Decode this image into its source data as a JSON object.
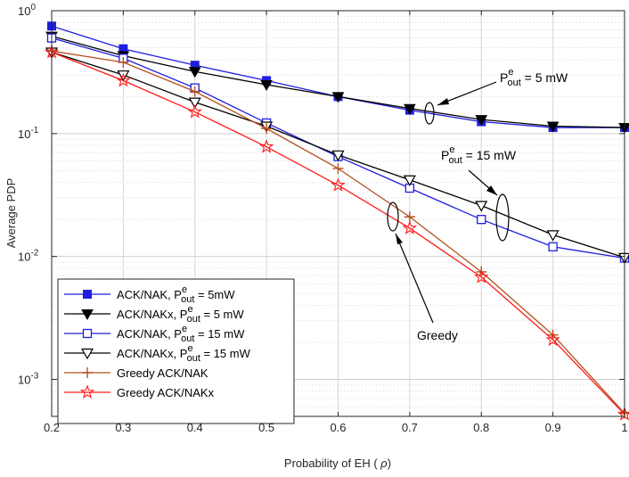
{
  "chart_data": {
    "type": "line",
    "yscale": "log",
    "xlabel": "Probability of EH (ρ)",
    "ylabel": "Average PDP",
    "xlim": [
      0.2,
      1.0
    ],
    "ylim": [
      0.0005,
      1
    ],
    "grid": true,
    "x": [
      0.2,
      0.3,
      0.4,
      0.5,
      0.6,
      0.7,
      0.8,
      0.9,
      1.0
    ],
    "x_tick_labels": [
      "0.2",
      "0.3",
      "0.4",
      "0.5",
      "0.6",
      "0.7",
      "0.8",
      "0.9",
      "1"
    ],
    "y_ticks": [
      {
        "value": 1,
        "base": "10",
        "exp": "0"
      },
      {
        "value": 0.1,
        "base": "10",
        "exp": "-1"
      },
      {
        "value": 0.01,
        "base": "10",
        "exp": "-2"
      },
      {
        "value": 0.001,
        "base": "10",
        "exp": "-3"
      }
    ],
    "legend_position": "bottom-left",
    "series": [
      {
        "name": "ACK/NAK, P^e_out = 5mW",
        "label_parts": [
          "ACK/NAK, P",
          "e",
          "out",
          " = 5mW"
        ],
        "color": "#1f1fe0",
        "marker": "square-filled",
        "values": [
          0.75,
          0.49,
          0.36,
          0.27,
          0.2,
          0.155,
          0.125,
          0.112,
          0.112
        ]
      },
      {
        "name": "ACK/NAKx, P^e_out = 5 mW",
        "label_parts": [
          "ACK/NAKx, P",
          "e",
          "out",
          " = 5 mW"
        ],
        "color": "#000000",
        "marker": "triangle-down-filled",
        "values": [
          0.62,
          0.43,
          0.32,
          0.25,
          0.2,
          0.16,
          0.13,
          0.115,
          0.112
        ]
      },
      {
        "name": "ACK/NAK, P^e_out = 15 mW",
        "label_parts": [
          "ACK/NAK, P",
          "e",
          "out",
          " = 15 mW"
        ],
        "color": "#1f1fe0",
        "marker": "square-open",
        "values": [
          0.6,
          0.41,
          0.235,
          0.122,
          0.065,
          0.036,
          0.02,
          0.012,
          0.0097
        ]
      },
      {
        "name": "ACK/NAKx, P^e_out = 15 mW",
        "label_parts": [
          "ACK/NAKx, P",
          "e",
          "out",
          " = 15 mW"
        ],
        "color": "#000000",
        "marker": "triangle-down-open",
        "values": [
          0.46,
          0.3,
          0.18,
          0.115,
          0.067,
          0.042,
          0.026,
          0.015,
          0.0098
        ]
      },
      {
        "name": "Greedy ACK/NAK",
        "label_parts": [
          "Greedy ACK/NAK",
          "",
          "",
          ""
        ],
        "color": "#b5501e",
        "marker": "plus",
        "values": [
          0.47,
          0.38,
          0.22,
          0.11,
          0.052,
          0.021,
          0.0075,
          0.0023,
          0.00053
        ]
      },
      {
        "name": "Greedy ACK/NAKx",
        "label_parts": [
          "Greedy ACK/NAKx",
          "",
          "",
          ""
        ],
        "color": "#ff1a1a",
        "marker": "star-open",
        "values": [
          0.46,
          0.27,
          0.15,
          0.078,
          0.038,
          0.017,
          0.0068,
          0.0021,
          0.00052
        ]
      }
    ],
    "annotations": [
      {
        "id": "ann-5mw",
        "base": "P",
        "sup": "e",
        "sub": "out",
        "tail": " = 5 mW"
      },
      {
        "id": "ann-15mw",
        "base": "P",
        "sup": "e",
        "sub": "out",
        "tail": " = 15 mW"
      },
      {
        "id": "ann-greedy",
        "text": "Greedy"
      }
    ]
  }
}
